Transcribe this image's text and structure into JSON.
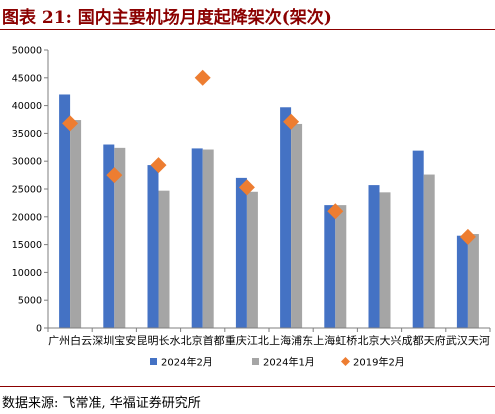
{
  "title": "图表 21:  国内主要机场月度起降架次(架次)",
  "source": "数据来源: 飞常准, 华福证券研究所",
  "colors": {
    "2024-02": "#4472c4",
    "2024-01": "#a5a5a5",
    "2019-02": "#ed7d31",
    "brand": "#8b0000"
  },
  "chart_data": {
    "type": "bar",
    "categories": [
      "广州白云",
      "深圳宝安",
      "昆明长水",
      "北京首都",
      "重庆江北",
      "上海浦东",
      "上海虹桥",
      "北京大兴",
      "成都天府",
      "武汉天河"
    ],
    "series": [
      {
        "name": "2024年2月",
        "kind": "bar",
        "values": [
          42000,
          33000,
          29300,
          32300,
          27000,
          39700,
          22100,
          25700,
          31900,
          16600
        ]
      },
      {
        "name": "2024年1月",
        "kind": "bar",
        "values": [
          37400,
          32400,
          24700,
          32100,
          24500,
          36700,
          22100,
          24400,
          27600,
          16900
        ]
      },
      {
        "name": "2019年2月",
        "kind": "marker",
        "values": [
          36800,
          27500,
          29300,
          45000,
          25300,
          37100,
          21000,
          null,
          null,
          16400
        ]
      }
    ],
    "ylim": [
      0,
      50000
    ],
    "yticks": [
      "0",
      "5000",
      "10000",
      "15000",
      "20000",
      "25000",
      "30000",
      "35000",
      "40000",
      "45000",
      "50000"
    ],
    "legend_position": "bottom"
  }
}
